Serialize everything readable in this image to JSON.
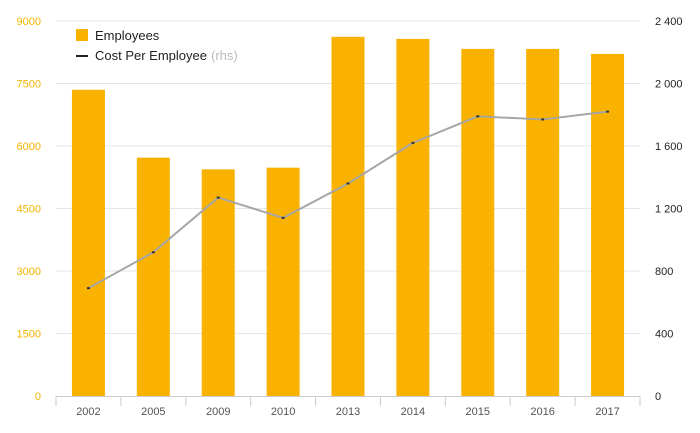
{
  "chart_data": {
    "type": "bar",
    "categories": [
      "2002",
      "2005",
      "2009",
      "2010",
      "2013",
      "2014",
      "2015",
      "2016",
      "2017"
    ],
    "series": [
      {
        "name": "Employees",
        "type": "bar",
        "axis": "left",
        "values": [
          7350,
          5720,
          5440,
          5480,
          8620,
          8570,
          8330,
          8330,
          8210
        ]
      },
      {
        "name": "Cost Per Employee",
        "name_note": "(rhs)",
        "type": "line",
        "axis": "right",
        "values": [
          690,
          920,
          1270,
          1140,
          1360,
          1620,
          1790,
          1770,
          1820
        ]
      }
    ],
    "y_left": {
      "min": 0,
      "max": 9000,
      "ticks": [
        "0",
        "1500",
        "3000",
        "4500",
        "6000",
        "7500",
        "9000"
      ],
      "tick_values": [
        0,
        1500,
        3000,
        4500,
        6000,
        7500,
        9000
      ]
    },
    "y_right": {
      "min": 0,
      "max": 2400,
      "ticks": [
        "0",
        "400",
        "800",
        "1 200",
        "1 600",
        "2 000",
        "2 400"
      ],
      "tick_values": [
        0,
        400,
        800,
        1200,
        1600,
        2000,
        2400
      ]
    },
    "grid": true,
    "legend_position": "top-left",
    "colors": {
      "bar": "#f9b200",
      "line": "#a6a6a6",
      "line_marker": "#333333",
      "left_ticks": "#f5b400",
      "grid": "#e6e6e6"
    }
  }
}
